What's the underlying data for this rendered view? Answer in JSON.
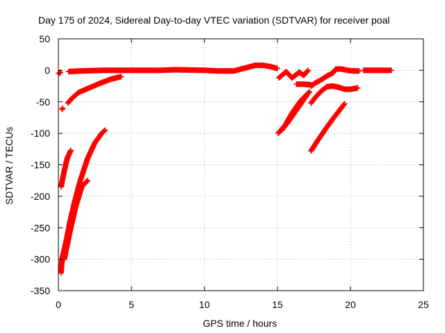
{
  "chart_data": {
    "type": "scatter",
    "title": "Day 175 of 2024, Sidereal Day-to-day VTEC variation (SDTVAR) for receiver poal",
    "xlabel": "GPS time / hours",
    "ylabel": "SDTVAR / TECUs",
    "xlim": [
      0,
      25
    ],
    "ylim": [
      -350,
      50
    ],
    "grid": true,
    "marker": "+",
    "color": "#ff0000",
    "x_ticks": [
      0,
      5,
      10,
      15,
      20,
      25
    ],
    "y_ticks": [
      50,
      0,
      -50,
      -100,
      -150,
      -200,
      -250,
      -300,
      -350
    ],
    "series": [
      {
        "name": "sdtvar",
        "segments": [
          [
            [
              0.02,
              -5
            ],
            [
              0.15,
              -3
            ]
          ],
          [
            [
              0.25,
              -62
            ],
            [
              0.3,
              -60
            ]
          ],
          [
            [
              0.65,
              -52
            ],
            [
              0.9,
              -45
            ],
            [
              1.4,
              -35
            ],
            [
              2.0,
              -29
            ],
            [
              2.8,
              -21
            ],
            [
              3.6,
              -14
            ],
            [
              4.3,
              -10
            ]
          ],
          [
            [
              0.7,
              -2
            ],
            [
              1.5,
              -1
            ],
            [
              3.0,
              0
            ],
            [
              5.0,
              0
            ],
            [
              7.0,
              0
            ],
            [
              8.0,
              1
            ],
            [
              10.0,
              0
            ],
            [
              11.0,
              -1
            ],
            [
              12.0,
              -1
            ],
            [
              12.5,
              2
            ],
            [
              13.0,
              5
            ],
            [
              13.5,
              8
            ],
            [
              14.0,
              8
            ],
            [
              14.5,
              6
            ],
            [
              15.0,
              3
            ]
          ],
          [
            [
              0.18,
              -185
            ],
            [
              0.4,
              -160
            ],
            [
              0.6,
              -140
            ],
            [
              0.85,
              -127
            ]
          ],
          [
            [
              0.18,
              -322
            ],
            [
              0.25,
              -300
            ],
            [
              0.5,
              -275
            ],
            [
              0.8,
              -240
            ],
            [
              1.1,
              -210
            ],
            [
              1.5,
              -175
            ],
            [
              2.0,
              -140
            ],
            [
              2.5,
              -115
            ],
            [
              3.0,
              -99
            ],
            [
              3.2,
              -95
            ]
          ],
          [
            [
              0.4,
              -300
            ],
            [
              0.8,
              -255
            ],
            [
              1.2,
              -215
            ],
            [
              1.6,
              -185
            ],
            [
              2.0,
              -175
            ]
          ],
          [
            [
              15.1,
              -12
            ],
            [
              15.6,
              -2
            ],
            [
              16.0,
              -12
            ],
            [
              16.5,
              -3
            ],
            [
              16.8,
              -8
            ],
            [
              17.1,
              0
            ]
          ],
          [
            [
              15.05,
              -100
            ],
            [
              15.5,
              -88
            ],
            [
              16.0,
              -68
            ],
            [
              16.6,
              -48
            ],
            [
              17.2,
              -34
            ]
          ],
          [
            [
              15.3,
              -95
            ],
            [
              15.8,
              -80
            ],
            [
              16.4,
              -60
            ],
            [
              17.0,
              -40
            ]
          ],
          [
            [
              16.3,
              -22
            ],
            [
              16.8,
              -22
            ],
            [
              17.3,
              -23
            ]
          ],
          [
            [
              17.3,
              -25
            ],
            [
              17.6,
              -20
            ],
            [
              18.0,
              -15
            ],
            [
              18.4,
              -9
            ],
            [
              18.8,
              -4
            ]
          ],
          [
            [
              17.3,
              -52
            ],
            [
              17.6,
              -43
            ],
            [
              18.0,
              -33
            ],
            [
              18.4,
              -26
            ],
            [
              18.8,
              -25
            ],
            [
              19.2,
              -27
            ],
            [
              19.6,
              -30
            ],
            [
              20.0,
              -30
            ],
            [
              20.5,
              -28
            ]
          ],
          [
            [
              17.3,
              -128
            ],
            [
              17.8,
              -110
            ],
            [
              18.3,
              -93
            ],
            [
              18.8,
              -77
            ],
            [
              19.3,
              -62
            ],
            [
              19.6,
              -53
            ]
          ],
          [
            [
              18.8,
              -4
            ],
            [
              19.0,
              2
            ],
            [
              19.4,
              2
            ],
            [
              19.8,
              0
            ],
            [
              20.2,
              -1
            ],
            [
              20.6,
              -1
            ]
          ],
          [
            [
              20.9,
              0
            ],
            [
              21.5,
              0
            ],
            [
              22.2,
              0
            ],
            [
              22.8,
              0
            ]
          ]
        ]
      }
    ]
  }
}
